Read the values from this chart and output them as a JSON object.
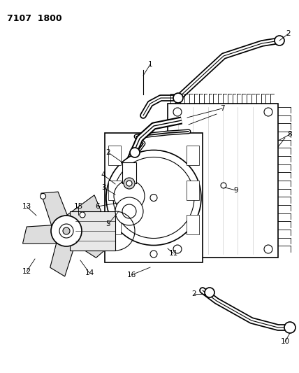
{
  "title": "7107  1800",
  "bg_color": "#ffffff",
  "fg_color": "#000000",
  "fig_width": 4.28,
  "fig_height": 5.33,
  "dpi": 100
}
